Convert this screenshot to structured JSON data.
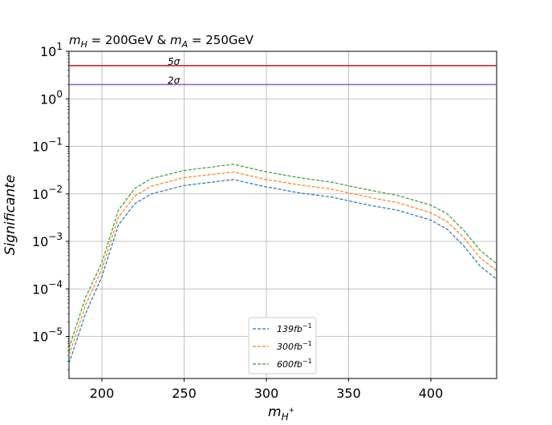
{
  "chart_data": {
    "type": "line",
    "title": "m_H = 200GeV & m_A = 250GeV",
    "title_parts": {
      "m1": "m",
      "s1": "H",
      "eq1": " = 200GeV & ",
      "m2": "m",
      "s2": "A",
      "eq2": " = 250GeV"
    },
    "xlabel": "m_{H+}",
    "xlabel_parts": {
      "m": "m",
      "sub": "H",
      "sup": "+"
    },
    "ylabel": "Significante",
    "xlim": [
      180,
      440
    ],
    "ylim": [
      1.3e-06,
      10
    ],
    "yscale": "log",
    "grid": true,
    "x_ticks": [
      200,
      250,
      300,
      350,
      400
    ],
    "y_ticks": [
      {
        "value": 1e-05,
        "base": "10",
        "exp": "−5"
      },
      {
        "value": 0.0001,
        "base": "10",
        "exp": "−4"
      },
      {
        "value": 0.001,
        "base": "10",
        "exp": "−3"
      },
      {
        "value": 0.01,
        "base": "10",
        "exp": "−2"
      },
      {
        "value": 0.1,
        "base": "10",
        "exp": "−1"
      },
      {
        "value": 1,
        "base": "10",
        "exp": "0"
      },
      {
        "value": 10,
        "base": "10",
        "exp": "1"
      }
    ],
    "x": [
      180,
      190,
      200,
      210,
      220,
      230,
      250,
      280,
      300,
      320,
      340,
      360,
      380,
      400,
      410,
      420,
      430,
      440
    ],
    "series": [
      {
        "name": "139fb^-1",
        "name_base": "139fb",
        "name_exp": "−1",
        "color": "#1f77b4",
        "values": [
          2.7e-06,
          3e-05,
          0.00018,
          0.0022,
          0.0062,
          0.01,
          0.015,
          0.02,
          0.014,
          0.0105,
          0.0085,
          0.006,
          0.0045,
          0.0028,
          0.0018,
          0.0008,
          0.0003,
          0.00016
        ]
      },
      {
        "name": "300fb^-1",
        "name_base": "300fb",
        "name_exp": "−1",
        "color": "#ff7f0e",
        "values": [
          4e-06,
          4.5e-05,
          0.00026,
          0.0032,
          0.009,
          0.0145,
          0.022,
          0.029,
          0.02,
          0.0155,
          0.0125,
          0.0088,
          0.0065,
          0.004,
          0.0026,
          0.0012,
          0.00045,
          0.00024
        ]
      },
      {
        "name": "600fb^-1",
        "name_base": "600fb",
        "name_exp": "−1",
        "color": "#2ca02c",
        "values": [
          5.7e-06,
          6.5e-05,
          0.00036,
          0.0045,
          0.013,
          0.021,
          0.031,
          0.042,
          0.029,
          0.022,
          0.0175,
          0.0125,
          0.0092,
          0.0058,
          0.0038,
          0.0017,
          0.00065,
          0.00034
        ]
      }
    ],
    "hlines": [
      {
        "value": 5,
        "color": "#d62728",
        "label": "5σ",
        "label_x": 240
      },
      {
        "value": 2,
        "color": "#9467bd",
        "label": "2σ",
        "label_x": 240
      }
    ],
    "legend_position": "lower-center"
  }
}
